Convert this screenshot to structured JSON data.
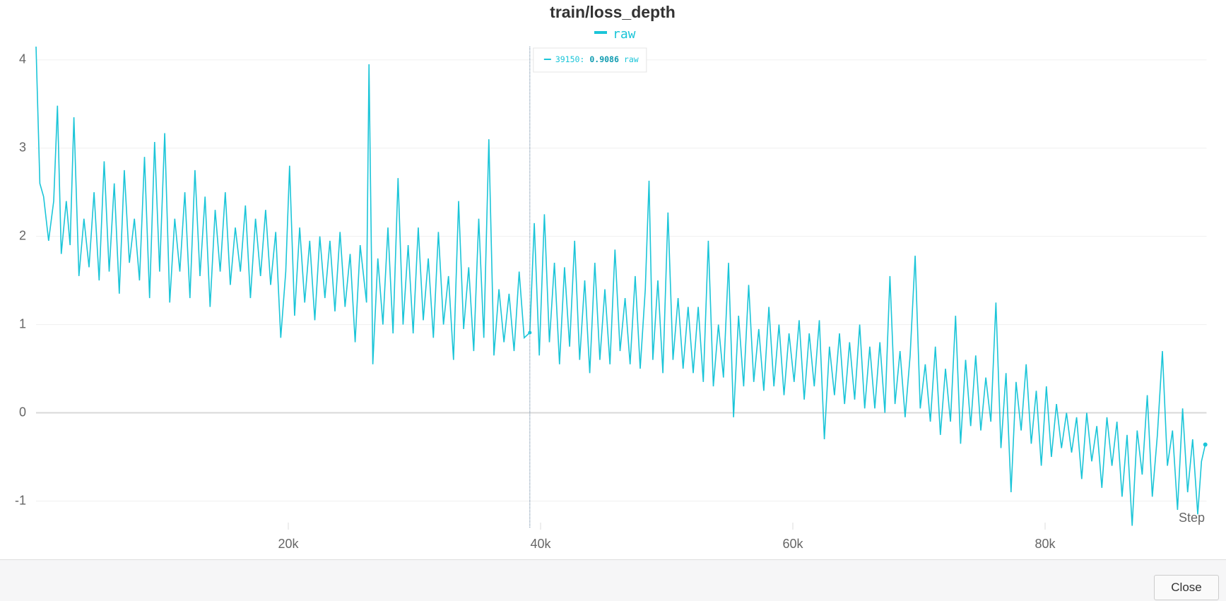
{
  "chart_data": {
    "type": "line",
    "title": "train/loss_depth",
    "x_label": "Step",
    "x": [
      0,
      300,
      600,
      1000,
      1400,
      1700,
      2000,
      2400,
      2700,
      3000,
      3400,
      3800,
      4200,
      4600,
      5000,
      5400,
      5800,
      6200,
      6600,
      7000,
      7400,
      7800,
      8200,
      8600,
      9000,
      9400,
      9800,
      10200,
      10600,
      11000,
      11400,
      11800,
      12200,
      12600,
      13000,
      13400,
      13800,
      14200,
      14600,
      15000,
      15400,
      15800,
      16200,
      16600,
      17000,
      17400,
      17800,
      18200,
      18600,
      19000,
      19400,
      19800,
      20100,
      20500,
      20900,
      21300,
      21700,
      22100,
      22500,
      22900,
      23300,
      23700,
      24100,
      24500,
      24900,
      25300,
      25700,
      26200,
      26400,
      26700,
      27100,
      27500,
      27900,
      28300,
      28700,
      29100,
      29500,
      29900,
      30300,
      30700,
      31100,
      31500,
      31900,
      32300,
      32700,
      33100,
      33500,
      33900,
      34300,
      34700,
      35100,
      35500,
      35900,
      36300,
      36700,
      37100,
      37500,
      37900,
      38300,
      38700,
      39150,
      39500,
      39900,
      40300,
      40700,
      41100,
      41500,
      41900,
      42300,
      42700,
      43100,
      43500,
      43900,
      44300,
      44700,
      45100,
      45500,
      45900,
      46300,
      46700,
      47100,
      47500,
      47900,
      48300,
      48600,
      48900,
      49300,
      49700,
      50100,
      50500,
      50900,
      51300,
      51700,
      52100,
      52500,
      52900,
      53300,
      53700,
      54100,
      54500,
      54900,
      55300,
      55700,
      56100,
      56500,
      56900,
      57300,
      57700,
      58100,
      58500,
      58900,
      59300,
      59700,
      60100,
      60500,
      60900,
      61300,
      61700,
      62100,
      62500,
      62900,
      63300,
      63700,
      64100,
      64500,
      64900,
      65300,
      65700,
      66100,
      66500,
      66900,
      67300,
      67700,
      68100,
      68500,
      68900,
      69300,
      69700,
      70100,
      70500,
      70900,
      71300,
      71700,
      72100,
      72500,
      72900,
      73300,
      73700,
      74100,
      74500,
      74900,
      75300,
      75700,
      76100,
      76500,
      76900,
      77300,
      77700,
      78100,
      78500,
      78900,
      79300,
      79700,
      80100,
      80500,
      80900,
      81300,
      81700,
      82100,
      82500,
      82900,
      83300,
      83700,
      84100,
      84500,
      84900,
      85300,
      85700,
      86100,
      86500,
      86900,
      87300,
      87700,
      88100,
      88500,
      88900,
      89300,
      89700,
      90100,
      90500,
      90900,
      91300,
      91700,
      92100,
      92400,
      92700
    ],
    "series": [
      {
        "name": "raw",
        "color": "#1bc5d8",
        "values": [
          4.15,
          2.6,
          2.45,
          1.95,
          2.4,
          3.48,
          1.8,
          2.4,
          1.9,
          3.35,
          1.55,
          2.2,
          1.65,
          2.5,
          1.5,
          2.85,
          1.6,
          2.6,
          1.35,
          2.75,
          1.7,
          2.2,
          1.5,
          2.9,
          1.3,
          3.07,
          1.6,
          3.17,
          1.25,
          2.2,
          1.6,
          2.5,
          1.3,
          2.75,
          1.55,
          2.45,
          1.2,
          2.3,
          1.6,
          2.5,
          1.45,
          2.1,
          1.6,
          2.35,
          1.3,
          2.2,
          1.55,
          2.3,
          1.45,
          2.05,
          0.85,
          1.6,
          2.8,
          1.1,
          2.1,
          1.25,
          1.95,
          1.05,
          2.0,
          1.3,
          1.95,
          1.15,
          2.05,
          1.2,
          1.8,
          0.8,
          1.9,
          1.25,
          3.95,
          0.55,
          1.75,
          1.0,
          2.1,
          0.9,
          2.66,
          1.0,
          1.9,
          0.9,
          2.1,
          1.05,
          1.75,
          0.85,
          2.05,
          1.0,
          1.55,
          0.6,
          2.4,
          0.95,
          1.65,
          0.7,
          2.2,
          0.85,
          3.1,
          0.65,
          1.4,
          0.8,
          1.35,
          0.7,
          1.6,
          0.85,
          0.9086,
          2.15,
          0.65,
          2.25,
          0.8,
          1.7,
          0.55,
          1.65,
          0.75,
          1.95,
          0.6,
          1.5,
          0.45,
          1.7,
          0.6,
          1.4,
          0.55,
          1.85,
          0.7,
          1.3,
          0.55,
          1.55,
          0.5,
          1.4,
          2.63,
          0.6,
          1.5,
          0.45,
          2.27,
          0.6,
          1.3,
          0.5,
          1.2,
          0.45,
          1.2,
          0.35,
          1.95,
          0.3,
          1.0,
          0.4,
          1.7,
          -0.05,
          1.1,
          0.3,
          1.45,
          0.35,
          0.95,
          0.25,
          1.2,
          0.3,
          1.0,
          0.2,
          0.9,
          0.35,
          1.05,
          0.15,
          0.9,
          0.3,
          1.05,
          -0.3,
          0.75,
          0.2,
          0.9,
          0.1,
          0.8,
          0.15,
          1.0,
          0.05,
          0.75,
          0.05,
          0.8,
          0.0,
          1.55,
          0.1,
          0.7,
          -0.05,
          0.65,
          1.78,
          0.05,
          0.55,
          -0.1,
          0.75,
          -0.25,
          0.5,
          -0.1,
          1.1,
          -0.35,
          0.6,
          -0.15,
          0.65,
          -0.2,
          0.4,
          -0.1,
          1.25,
          -0.4,
          0.45,
          -0.9,
          0.35,
          -0.2,
          0.55,
          -0.35,
          0.25,
          -0.6,
          0.3,
          -0.5,
          0.1,
          -0.4,
          0.0,
          -0.45,
          -0.05,
          -0.75,
          0.0,
          -0.55,
          -0.15,
          -0.85,
          -0.05,
          -0.6,
          -0.1,
          -0.95,
          -0.25,
          -1.28,
          -0.2,
          -0.7,
          0.2,
          -0.95,
          -0.25,
          0.7,
          -0.6,
          -0.2,
          -1.1,
          0.05,
          -0.9,
          -0.3,
          -1.15,
          -0.55,
          -0.36
        ]
      }
    ],
    "xlim": [
      0,
      92800
    ],
    "ylim": [
      -1.3,
      4.15
    ],
    "xticks": [
      {
        "value": 20000,
        "label": "20k"
      },
      {
        "value": 40000,
        "label": "40k"
      },
      {
        "value": 60000,
        "label": "60k"
      },
      {
        "value": 80000,
        "label": "80k"
      }
    ],
    "yticks": [
      -1,
      0,
      1,
      2,
      3,
      4
    ],
    "grid": true,
    "tooltip": {
      "step": {
        "value": 39150,
        "label": "39150:"
      },
      "value": 0.9086,
      "series": "raw"
    }
  },
  "footer": {
    "button": "Close"
  }
}
